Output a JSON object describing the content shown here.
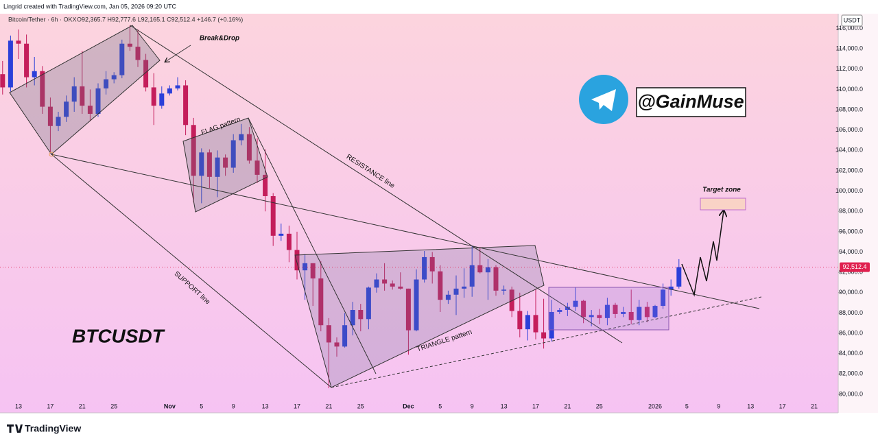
{
  "header": {
    "credit": "Lingrid created with TradingView.com, Jan 05, 2026 09:20 UTC",
    "symbol": "Bitcoin/Tether · 6h · OKX",
    "ohlc": "O92,365.7 H92,777.6 L92,165.1 C92,512.4 +146.7 (+0.16%)"
  },
  "chart_data": {
    "type": "candlestick",
    "currency": "USDT",
    "categories": [
      null,
      null,
      "13",
      null,
      null,
      null,
      "17",
      null,
      null,
      null,
      "21",
      null,
      null,
      null,
      "25",
      null,
      null,
      null,
      null,
      null,
      null,
      "Nov",
      null,
      null,
      null,
      "5",
      null,
      null,
      null,
      "9",
      null,
      null,
      null,
      "13",
      null,
      null,
      null,
      "17",
      null,
      null,
      null,
      "21",
      null,
      null,
      null,
      "25",
      null,
      null,
      null,
      null,
      null,
      "Dec",
      null,
      null,
      null,
      "5",
      null,
      null,
      null,
      "9",
      null,
      null,
      null,
      "13",
      null,
      null,
      null,
      "17",
      null,
      null,
      null,
      "21",
      null,
      null,
      null,
      "25",
      null,
      null,
      null,
      null,
      null,
      null,
      "2026",
      null,
      null,
      null,
      "5",
      null,
      null,
      null,
      "9",
      null,
      null,
      null,
      "13",
      null,
      null,
      null,
      "17",
      null,
      null,
      null,
      "21",
      null,
      null,
      null
    ],
    "open": [
      111500,
      110200,
      114800,
      114500,
      111200,
      111800,
      108300,
      106400,
      107300,
      108800,
      110300,
      108400,
      107600,
      110100,
      111000,
      111400,
      114500,
      114200,
      112900,
      110200,
      108400,
      109600,
      110100,
      110400,
      106500,
      101500,
      103800,
      101400,
      103300,
      102300,
      105000,
      105600,
      103000,
      101600,
      99500,
      95600,
      95800,
      94200,
      92200,
      92900,
      91400,
      86800,
      85100,
      84700,
      86800,
      88300,
      87400,
      90500,
      91300,
      90900,
      90600,
      90400,
      86300,
      91300,
      93500,
      92100,
      89300,
      89800,
      90400,
      90600,
      92700,
      92000,
      92500,
      90200,
      90300,
      88200,
      86400,
      87800,
      86100,
      85500,
      88100,
      88300,
      88600,
      89200,
      87600,
      87800,
      87500,
      88800,
      87900,
      88100,
      87300,
      88600,
      87600,
      88700,
      90300,
      90600,
      null,
      null,
      null,
      null,
      null,
      null,
      null,
      null,
      null,
      null,
      null,
      null,
      null,
      null,
      null,
      null,
      null,
      null,
      null,
      null
    ],
    "high": [
      112800,
      115300,
      115900,
      115400,
      113200,
      112300,
      109200,
      107800,
      109400,
      111200,
      113800,
      110000,
      110600,
      111800,
      111700,
      114900,
      116300,
      115900,
      113500,
      111600,
      110300,
      110400,
      111200,
      110900,
      107200,
      104200,
      104100,
      104000,
      103600,
      105600,
      106600,
      106300,
      105200,
      104100,
      99800,
      96800,
      96600,
      96000,
      93800,
      92900,
      93100,
      87500,
      85600,
      88000,
      89100,
      88900,
      90600,
      91900,
      92900,
      91200,
      92000,
      90400,
      92300,
      94100,
      94000,
      92700,
      90200,
      91700,
      92400,
      94600,
      94500,
      93300,
      92700,
      90700,
      90600,
      90000,
      88200,
      90300,
      89400,
      89300,
      88500,
      89000,
      90500,
      89300,
      88300,
      88400,
      89500,
      89000,
      88600,
      90300,
      89300,
      89100,
      88800,
      90900,
      91300,
      93300,
      null,
      null,
      null,
      null,
      null,
      null,
      null,
      null,
      null,
      null,
      null,
      null,
      null,
      null,
      null,
      null,
      null,
      null,
      null,
      null
    ],
    "low": [
      109500,
      109800,
      113000,
      110200,
      110400,
      107600,
      103800,
      105900,
      106800,
      107800,
      107600,
      106900,
      107300,
      109500,
      110600,
      111100,
      113800,
      112200,
      109800,
      106500,
      108100,
      109400,
      109900,
      105500,
      98900,
      98800,
      100300,
      99400,
      101500,
      101800,
      104500,
      102700,
      100800,
      98000,
      94600,
      95100,
      93000,
      91300,
      89300,
      88700,
      86200,
      80600,
      83700,
      84600,
      85800,
      86200,
      86400,
      90000,
      90200,
      90300,
      90300,
      83900,
      86200,
      91000,
      90900,
      88100,
      88900,
      87800,
      89500,
      89600,
      91900,
      89300,
      89700,
      89800,
      87600,
      85600,
      85300,
      85400,
      84500,
      85200,
      87900,
      87700,
      88200,
      87000,
      86700,
      86900,
      86800,
      87500,
      87600,
      86900,
      86800,
      87100,
      87500,
      88400,
      89700,
      90400,
      null,
      null,
      null,
      null,
      null,
      null,
      null,
      null,
      null,
      null,
      null,
      null,
      null,
      null,
      null,
      null,
      null,
      null,
      null,
      null
    ],
    "close": [
      110200,
      114800,
      114500,
      111200,
      111800,
      108300,
      106400,
      107300,
      108800,
      110300,
      108400,
      107600,
      110100,
      111000,
      111400,
      114500,
      114200,
      112900,
      110200,
      108400,
      109600,
      110100,
      110400,
      106500,
      101500,
      103800,
      101400,
      103300,
      102300,
      105000,
      105600,
      103000,
      101600,
      99500,
      95600,
      95800,
      94200,
      92200,
      92900,
      91400,
      86800,
      85100,
      84700,
      86800,
      88300,
      87400,
      90500,
      91300,
      90900,
      90600,
      90400,
      86300,
      91300,
      93500,
      92100,
      89300,
      89800,
      90400,
      90600,
      92700,
      92000,
      92500,
      90200,
      90300,
      88200,
      86400,
      87800,
      86100,
      85500,
      88100,
      88300,
      88600,
      89200,
      87600,
      87800,
      87500,
      88800,
      87900,
      88100,
      87300,
      88600,
      87600,
      88700,
      90300,
      90600,
      92512.4,
      null,
      null,
      null,
      null,
      null,
      null,
      null,
      null,
      null,
      null,
      null,
      null,
      null,
      null,
      null,
      null,
      null,
      null,
      null,
      null
    ],
    "up_color": "#2b3fd9",
    "down_color": "#c41d5b",
    "ylim": [
      78178,
      117450
    ],
    "yticks": [
      {
        "value": 80000,
        "label": "80,000.0"
      },
      {
        "value": 82000,
        "label": "82,000.0"
      },
      {
        "value": 84000,
        "label": "84,000.0"
      },
      {
        "value": 86000,
        "label": "86,000.0"
      },
      {
        "value": 88000,
        "label": "88,000.0"
      },
      {
        "value": 90000,
        "label": "90,000.0"
      },
      {
        "value": 92000,
        "label": "92,000.0"
      },
      {
        "value": 94000,
        "label": "94,000.0"
      },
      {
        "value": 96000,
        "label": "96,000.0"
      },
      {
        "value": 98000,
        "label": "98,000.0"
      },
      {
        "value": 100000,
        "label": "100,000.0"
      },
      {
        "value": 102000,
        "label": "102,000.0"
      },
      {
        "value": 104000,
        "label": "104,000.0"
      },
      {
        "value": 106000,
        "label": "106,000.0"
      },
      {
        "value": 108000,
        "label": "108,000.0"
      },
      {
        "value": 110000,
        "label": "110,000.0"
      },
      {
        "value": 112000,
        "label": "112,000.0"
      },
      {
        "value": 114000,
        "label": "114,000.0"
      },
      {
        "value": 116000,
        "label": "116,000.0"
      }
    ],
    "price_marker": {
      "value": 92512.4,
      "label": "92,512.4",
      "color": "#e0204f"
    },
    "annotations": {
      "break": "Break&Drop",
      "flag": "FLAG pattern",
      "resistance": "RESISTANCE line",
      "support": "SUPPORT line",
      "triangle": "TRIANGLE pattern",
      "target": "Target zone",
      "ticker": "BTCUSDT",
      "handle": "@GainMuse"
    }
  },
  "footer": {
    "brand": "TradingView"
  }
}
